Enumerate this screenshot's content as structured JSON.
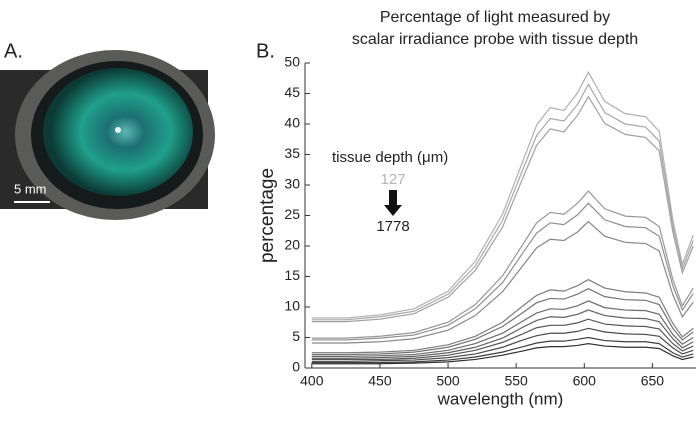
{
  "panels": {
    "a": "A.",
    "b": "B."
  },
  "photo": {
    "scale_bar": "5 mm"
  },
  "chart_data": {
    "type": "line",
    "title": [
      "Percentage of light measured by",
      "scalar irradiance probe with tissue depth"
    ],
    "x_label": "wavelength (nm)",
    "y_label": "percentage",
    "annotation": {
      "label": "tissue depth (μm)",
      "from": 127,
      "to": 1778
    },
    "x": [
      400,
      425,
      450,
      475,
      500,
      520,
      540,
      555,
      565,
      575,
      585,
      595,
      603,
      615,
      630,
      645,
      655,
      665,
      672,
      680
    ],
    "xlim": [
      395,
      682
    ],
    "xticks": [
      400,
      450,
      500,
      550,
      600,
      650
    ],
    "ylim": [
      0,
      50
    ],
    "yticks": [
      0,
      5,
      10,
      15,
      20,
      25,
      30,
      35,
      40,
      45,
      50
    ],
    "series": [
      {
        "color": "#b0b0b0",
        "values": [
          8.2,
          8.2,
          8.7,
          9.7,
          12.6,
          17.5,
          25.2,
          34.0,
          39.8,
          42.7,
          42.2,
          45.1,
          48.5,
          43.7,
          41.7,
          41.2,
          38.8,
          24.3,
          17.0,
          21.8
        ]
      },
      {
        "color": "#a8a8a8",
        "values": [
          7.9,
          7.9,
          8.4,
          9.3,
          12.1,
          16.7,
          24.2,
          32.6,
          38.1,
          40.9,
          40.5,
          43.2,
          46.5,
          41.9,
          40.0,
          39.5,
          37.2,
          23.3,
          16.3,
          20.9
        ]
      },
      {
        "color": "#a0a0a0",
        "values": [
          7.6,
          7.6,
          8.0,
          8.9,
          11.6,
          16.0,
          23.1,
          31.2,
          36.5,
          39.2,
          38.7,
          41.4,
          44.5,
          40.1,
          38.3,
          37.8,
          35.6,
          22.3,
          15.6,
          20.0
        ]
      },
      {
        "color": "#959595",
        "values": [
          4.9,
          4.9,
          5.2,
          5.8,
          7.5,
          10.4,
          15.1,
          20.3,
          23.8,
          25.5,
          25.2,
          27.0,
          29.0,
          26.1,
          24.9,
          24.7,
          23.2,
          14.5,
          10.2,
          13.1
        ]
      },
      {
        "color": "#8e8e8e",
        "values": [
          4.6,
          4.6,
          4.9,
          5.4,
          7.0,
          9.7,
          14.0,
          18.9,
          22.1,
          23.8,
          23.5,
          25.1,
          27.0,
          24.3,
          23.2,
          23.0,
          21.6,
          13.5,
          9.5,
          12.2
        ]
      },
      {
        "color": "#878787",
        "values": [
          4.1,
          4.1,
          4.3,
          4.8,
          6.2,
          8.6,
          12.5,
          16.8,
          19.7,
          21.1,
          20.9,
          22.3,
          24.0,
          21.6,
          20.6,
          20.4,
          19.2,
          12.0,
          8.4,
          10.8
        ]
      },
      {
        "color": "#7c7c7c",
        "values": [
          2.5,
          2.5,
          2.6,
          2.9,
          3.8,
          5.2,
          7.5,
          10.2,
          11.9,
          12.8,
          12.6,
          13.5,
          14.5,
          13.1,
          12.5,
          12.3,
          11.6,
          7.3,
          5.1,
          6.5
        ]
      },
      {
        "color": "#747474",
        "values": [
          2.2,
          2.2,
          2.3,
          2.6,
          3.4,
          4.7,
          6.8,
          9.1,
          10.7,
          11.4,
          11.3,
          12.1,
          13.0,
          11.7,
          11.2,
          11.1,
          10.4,
          6.5,
          4.6,
          5.9
        ]
      },
      {
        "color": "#6a6a6a",
        "values": [
          1.9,
          1.9,
          2.0,
          2.2,
          2.9,
          4.0,
          5.7,
          7.7,
          9.0,
          9.7,
          9.6,
          10.2,
          11.0,
          9.9,
          9.5,
          9.4,
          8.8,
          5.5,
          3.9,
          5.0
        ]
      },
      {
        "color": "#606060",
        "values": [
          1.6,
          1.6,
          1.7,
          1.9,
          2.5,
          3.4,
          4.9,
          6.7,
          7.8,
          8.4,
          8.3,
          8.8,
          9.5,
          8.6,
          8.2,
          8.1,
          7.6,
          4.8,
          3.3,
          4.3
        ]
      },
      {
        "color": "#555555",
        "values": [
          1.4,
          1.4,
          1.4,
          1.6,
          2.1,
          2.9,
          4.2,
          5.6,
          6.6,
          7.0,
          7.0,
          7.4,
          8.0,
          7.2,
          6.9,
          6.8,
          6.4,
          4.0,
          2.8,
          3.6
        ]
      },
      {
        "color": "#4a4a4a",
        "values": [
          1.1,
          1.1,
          1.2,
          1.3,
          1.7,
          2.3,
          3.4,
          4.6,
          5.3,
          5.7,
          5.7,
          6.0,
          6.5,
          5.9,
          5.6,
          5.5,
          5.2,
          3.3,
          2.3,
          2.9
        ]
      },
      {
        "color": "#3e3e3e",
        "values": [
          0.9,
          0.9,
          0.9,
          1.0,
          1.3,
          1.8,
          2.6,
          3.5,
          4.1,
          4.4,
          4.4,
          4.7,
          5.0,
          4.5,
          4.3,
          4.3,
          4.0,
          2.5,
          1.8,
          2.3
        ]
      },
      {
        "color": "#303030",
        "values": [
          0.7,
          0.7,
          0.7,
          0.8,
          1.0,
          1.4,
          2.1,
          2.8,
          3.3,
          3.5,
          3.5,
          3.7,
          4.0,
          3.6,
          3.4,
          3.4,
          3.2,
          2.0,
          1.4,
          1.8
        ]
      }
    ]
  }
}
